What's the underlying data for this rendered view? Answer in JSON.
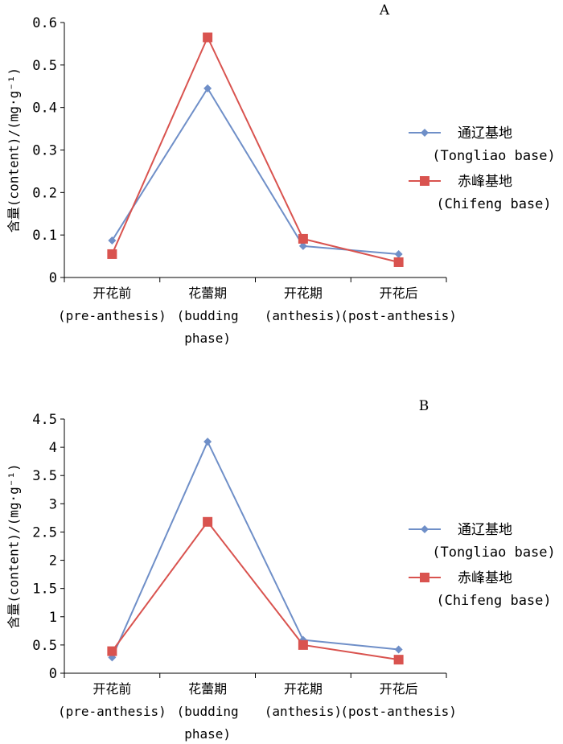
{
  "chart_data": [
    {
      "panel": "A",
      "type": "line",
      "categories": [
        [
          "开花前",
          "(pre-anthesis)"
        ],
        [
          "花蕾期",
          "(budding",
          "phase)"
        ],
        [
          "开花期",
          "(anthesis)"
        ],
        [
          "开花后",
          "(post-anthesis)"
        ]
      ],
      "ylabel": "含量(content)/(mg·g⁻¹)",
      "ylim": [
        0,
        0.6
      ],
      "yticks": [
        "0",
        "0.1",
        "0.2",
        "0.3",
        "0.4",
        "0.5",
        "0.6"
      ],
      "grid": false,
      "legend_position": "right",
      "series": [
        {
          "name": "通辽基地",
          "name2": "(Tongliao base)",
          "color": "#6f8fc8",
          "marker": "diamond",
          "values": [
            0.087,
            0.445,
            0.074,
            0.055
          ]
        },
        {
          "name": "赤峰基地",
          "name2": "(Chifeng base)",
          "color": "#d9534f",
          "marker": "square",
          "values": [
            0.055,
            0.565,
            0.091,
            0.036
          ]
        }
      ]
    },
    {
      "panel": "B",
      "type": "line",
      "categories": [
        [
          "开花前",
          "(pre-anthesis)"
        ],
        [
          "花蕾期",
          "(budding",
          "phase)"
        ],
        [
          "开花期",
          "(anthesis)"
        ],
        [
          "开花后",
          "(post-anthesis)"
        ]
      ],
      "ylabel": "含量(content)/(mg·g⁻¹)",
      "ylim": [
        0,
        4.5
      ],
      "yticks": [
        "0",
        "0.5",
        "1",
        "1.5",
        "2",
        "2.5",
        "3",
        "3.5",
        "4",
        "4.5"
      ],
      "grid": false,
      "legend_position": "right",
      "series": [
        {
          "name": "通辽基地",
          "name2": "(Tongliao base)",
          "color": "#6f8fc8",
          "marker": "diamond",
          "values": [
            0.28,
            4.1,
            0.59,
            0.42
          ]
        },
        {
          "name": "赤峰基地",
          "name2": "(Chifeng base)",
          "color": "#d9534f",
          "marker": "square",
          "values": [
            0.39,
            2.68,
            0.5,
            0.24
          ]
        }
      ]
    }
  ]
}
